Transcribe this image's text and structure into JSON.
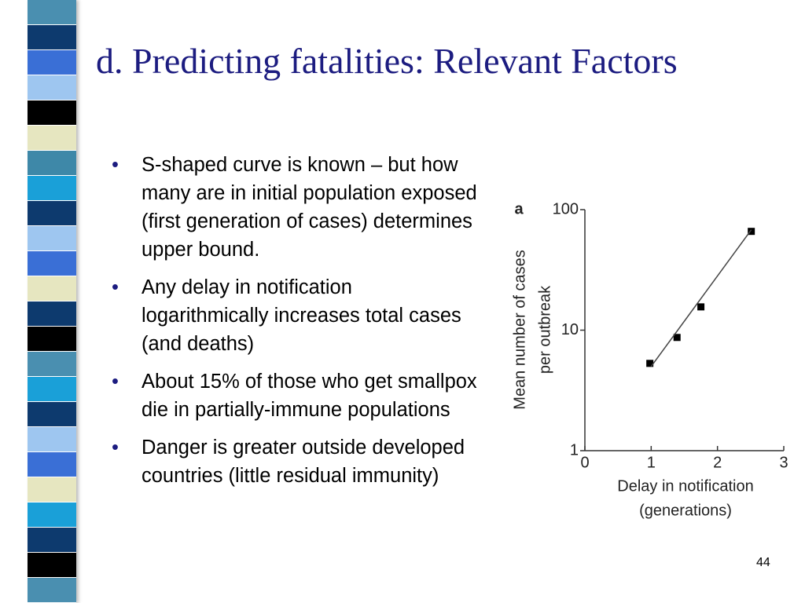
{
  "slide": {
    "title": "d. Predicting fatalities: Relevant Factors",
    "bullets": [
      "S-shaped curve is known – but how many are in initial population exposed (first generation of cases) determines upper bound.",
      "Any delay in notification logarithmically increases total cases (and deaths)",
      "About 15% of those who get smallpox die in partially-immune populations",
      "Danger is greater outside developed countries (little residual immunity)"
    ],
    "page_number": "44"
  },
  "chart_data": {
    "type": "scatter",
    "panel_label": "a",
    "x_label": [
      "Delay in notification",
      "(generations)"
    ],
    "y_label": [
      "Mean number of cases",
      "per outbreak"
    ],
    "series": [
      {
        "x": [
          0.98,
          1.39,
          1.75,
          2.51
        ],
        "values": [
          5.3,
          8.7,
          15.6,
          66
        ],
        "color": "#000000",
        "marker": "square"
      },
      {
        "x": [
          1.0,
          2.51
        ],
        "values": [
          5,
          68
        ],
        "color": "#444444",
        "marker": "line"
      }
    ],
    "xlim": [
      0,
      3
    ],
    "xticks": [
      0,
      1,
      2,
      3
    ],
    "ylim": [
      1,
      100
    ],
    "yticks": [
      1,
      10,
      100
    ],
    "log_y": true
  }
}
